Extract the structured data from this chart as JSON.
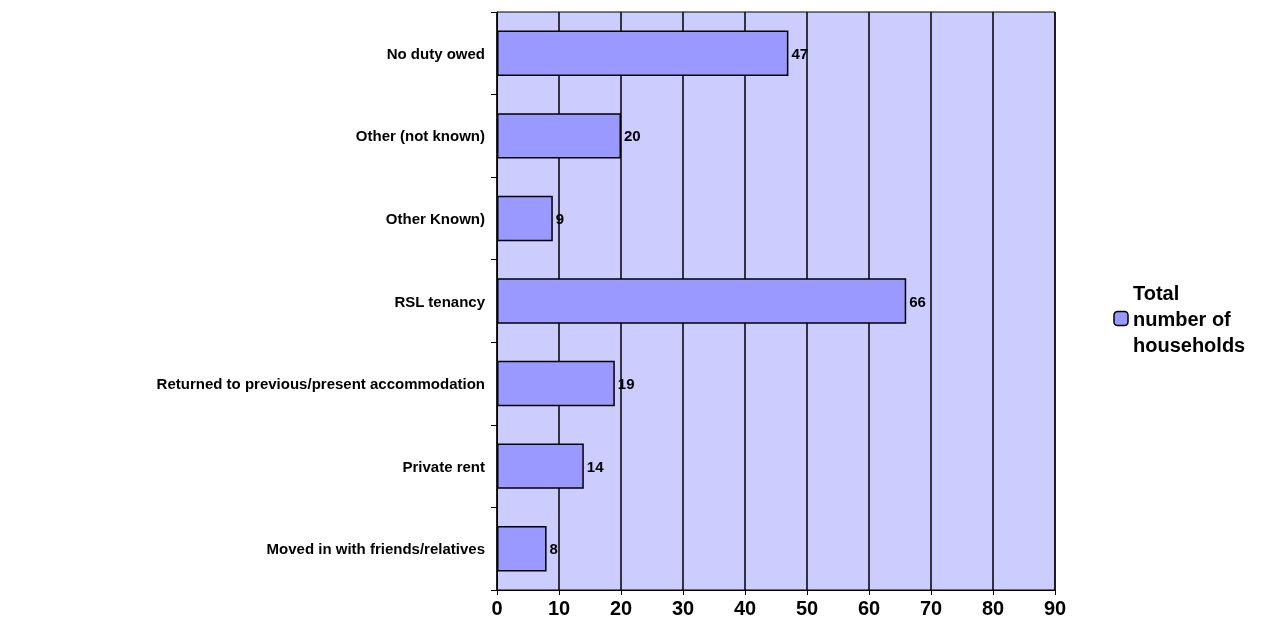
{
  "chart_data": {
    "type": "bar",
    "orientation": "horizontal",
    "categories": [
      "No duty owed",
      "Other (not known)",
      "Other Known)",
      "RSL tenancy",
      "Returned to previous/present accommodation",
      "Private rent",
      "Moved in with friends/relatives"
    ],
    "series": [
      {
        "name": "Total number of households",
        "color": "#9999ff",
        "values": [
          47,
          20,
          9,
          66,
          19,
          14,
          8
        ]
      }
    ],
    "xlim": [
      0,
      90
    ],
    "xticks": [
      0,
      10,
      20,
      30,
      40,
      50,
      60,
      70,
      80,
      90
    ],
    "grid": "x",
    "legend": "right",
    "data_labels": true
  }
}
